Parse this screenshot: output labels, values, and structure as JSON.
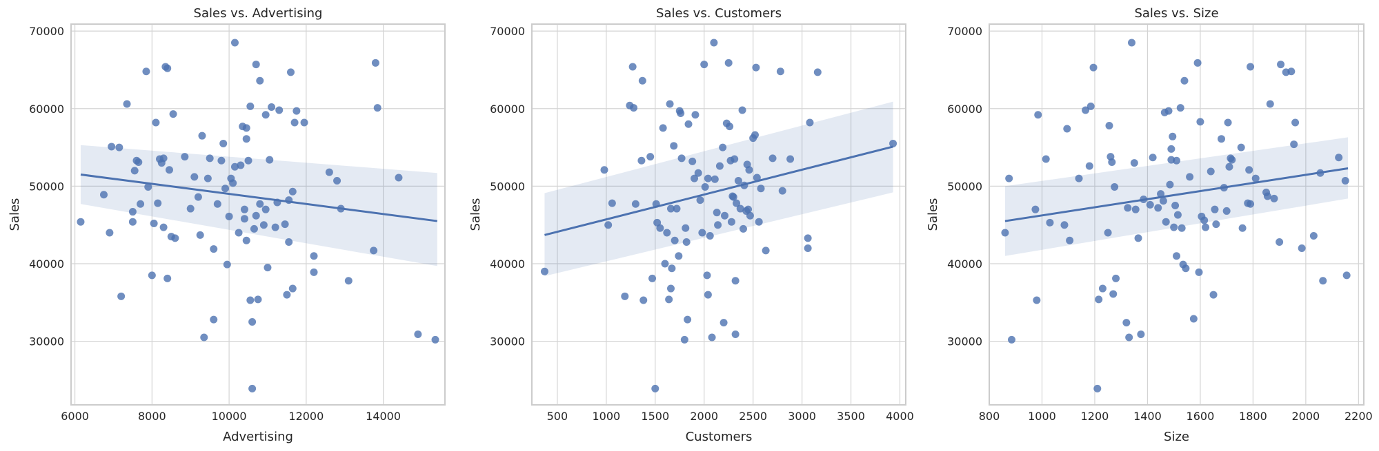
{
  "chart_data": [
    {
      "type": "scatter",
      "title": "Sales vs. Advertising",
      "xlabel": "Advertising",
      "ylabel": "Sales",
      "xlim": [
        5900,
        15600
      ],
      "ylim": [
        21800,
        70900
      ],
      "xticks": [
        6000,
        8000,
        10000,
        12000,
        14000
      ],
      "yticks": [
        30000,
        40000,
        50000,
        60000,
        70000
      ],
      "grid": true,
      "regression": {
        "x": [
          6150,
          15400
        ],
        "y": [
          51500,
          45500
        ],
        "ci_lower": [
          47700,
          39700
        ],
        "ci_upper": [
          55300,
          51700
        ]
      },
      "points": [
        [
          6150,
          45400
        ],
        [
          6750,
          48900
        ],
        [
          6900,
          44000
        ],
        [
          6950,
          55100
        ],
        [
          7150,
          55000
        ],
        [
          7200,
          35800
        ],
        [
          7350,
          60600
        ],
        [
          7500,
          46700
        ],
        [
          7500,
          45400
        ],
        [
          7550,
          52000
        ],
        [
          7600,
          53300
        ],
        [
          7650,
          53100
        ],
        [
          7700,
          47700
        ],
        [
          7850,
          64800
        ],
        [
          7900,
          49900
        ],
        [
          8000,
          38500
        ],
        [
          8050,
          45200
        ],
        [
          8100,
          58200
        ],
        [
          8150,
          47800
        ],
        [
          8200,
          53500
        ],
        [
          8250,
          53000
        ],
        [
          8300,
          53600
        ],
        [
          8300,
          44700
        ],
        [
          8350,
          65400
        ],
        [
          8400,
          65200
        ],
        [
          8400,
          38100
        ],
        [
          8450,
          52100
        ],
        [
          8500,
          43500
        ],
        [
          8550,
          59300
        ],
        [
          8600,
          43300
        ],
        [
          8850,
          53800
        ],
        [
          9000,
          47100
        ],
        [
          9100,
          51200
        ],
        [
          9200,
          48600
        ],
        [
          9250,
          43700
        ],
        [
          9300,
          56500
        ],
        [
          9350,
          30500
        ],
        [
          9450,
          51000
        ],
        [
          9500,
          53600
        ],
        [
          9600,
          32800
        ],
        [
          9600,
          41900
        ],
        [
          9700,
          47700
        ],
        [
          9800,
          53300
        ],
        [
          9850,
          55500
        ],
        [
          9900,
          49700
        ],
        [
          9950,
          39900
        ],
        [
          10000,
          46100
        ],
        [
          10050,
          51000
        ],
        [
          10100,
          50400
        ],
        [
          10150,
          68500
        ],
        [
          10150,
          52500
        ],
        [
          10250,
          44000
        ],
        [
          10300,
          52700
        ],
        [
          10350,
          57700
        ],
        [
          10400,
          47000
        ],
        [
          10400,
          45800
        ],
        [
          10450,
          57500
        ],
        [
          10450,
          56100
        ],
        [
          10450,
          43000
        ],
        [
          10500,
          53300
        ],
        [
          10550,
          60300
        ],
        [
          10550,
          35300
        ],
        [
          10600,
          23900
        ],
        [
          10600,
          32500
        ],
        [
          10650,
          44500
        ],
        [
          10700,
          46200
        ],
        [
          10700,
          65700
        ],
        [
          10750,
          35400
        ],
        [
          10800,
          47700
        ],
        [
          10800,
          63600
        ],
        [
          10900,
          45000
        ],
        [
          10950,
          59200
        ],
        [
          10950,
          47000
        ],
        [
          11000,
          39500
        ],
        [
          11050,
          53400
        ],
        [
          11100,
          60200
        ],
        [
          11200,
          44700
        ],
        [
          11250,
          47900
        ],
        [
          11300,
          59800
        ],
        [
          11450,
          45100
        ],
        [
          11500,
          36000
        ],
        [
          11550,
          48200
        ],
        [
          11550,
          42800
        ],
        [
          11600,
          64700
        ],
        [
          11650,
          49300
        ],
        [
          11650,
          36800
        ],
        [
          11700,
          58200
        ],
        [
          11750,
          59700
        ],
        [
          11950,
          58200
        ],
        [
          12200,
          41000
        ],
        [
          12200,
          38900
        ],
        [
          12600,
          51800
        ],
        [
          12800,
          50700
        ],
        [
          12900,
          47100
        ],
        [
          13100,
          37800
        ],
        [
          13750,
          41700
        ],
        [
          13800,
          65900
        ],
        [
          13850,
          60100
        ],
        [
          14400,
          51100
        ],
        [
          14900,
          30900
        ],
        [
          15350,
          30200
        ]
      ]
    },
    {
      "type": "scatter",
      "title": "Sales vs. Customers",
      "xlabel": "Customers",
      "ylabel": "Sales",
      "xlim": [
        240,
        4060
      ],
      "ylim": [
        21800,
        70900
      ],
      "xticks": [
        500,
        1000,
        1500,
        2000,
        2500,
        3000,
        3500,
        4000
      ],
      "yticks": [
        30000,
        40000,
        50000,
        60000,
        70000
      ],
      "grid": true,
      "regression": {
        "x": [
          370,
          3930
        ],
        "y": [
          43700,
          55100
        ],
        "ci_lower": [
          38400,
          49200
        ],
        "ci_upper": [
          49100,
          60900
        ]
      },
      "points": [
        [
          370,
          39000
        ],
        [
          980,
          52100
        ],
        [
          1020,
          45000
        ],
        [
          1060,
          47800
        ],
        [
          1190,
          35800
        ],
        [
          1240,
          60400
        ],
        [
          1270,
          65400
        ],
        [
          1280,
          60100
        ],
        [
          1300,
          47700
        ],
        [
          1360,
          53300
        ],
        [
          1370,
          63600
        ],
        [
          1380,
          35300
        ],
        [
          1450,
          53800
        ],
        [
          1470,
          38100
        ],
        [
          1500,
          23900
        ],
        [
          1510,
          47700
        ],
        [
          1520,
          45300
        ],
        [
          1550,
          44600
        ],
        [
          1580,
          57500
        ],
        [
          1600,
          40000
        ],
        [
          1620,
          44000
        ],
        [
          1640,
          35400
        ],
        [
          1650,
          60600
        ],
        [
          1660,
          36800
        ],
        [
          1660,
          47100
        ],
        [
          1670,
          39400
        ],
        [
          1690,
          55200
        ],
        [
          1700,
          43000
        ],
        [
          1720,
          47100
        ],
        [
          1740,
          41000
        ],
        [
          1750,
          59700
        ],
        [
          1760,
          59400
        ],
        [
          1770,
          53600
        ],
        [
          1800,
          30200
        ],
        [
          1810,
          44600
        ],
        [
          1820,
          42800
        ],
        [
          1830,
          32800
        ],
        [
          1840,
          58000
        ],
        [
          1880,
          53200
        ],
        [
          1900,
          51000
        ],
        [
          1910,
          59200
        ],
        [
          1940,
          51700
        ],
        [
          1960,
          48200
        ],
        [
          1980,
          44000
        ],
        [
          2000,
          65700
        ],
        [
          2010,
          49900
        ],
        [
          2030,
          38500
        ],
        [
          2040,
          51000
        ],
        [
          2040,
          36000
        ],
        [
          2060,
          43600
        ],
        [
          2080,
          30500
        ],
        [
          2100,
          68500
        ],
        [
          2110,
          50900
        ],
        [
          2130,
          46600
        ],
        [
          2140,
          45000
        ],
        [
          2160,
          52600
        ],
        [
          2190,
          55000
        ],
        [
          2200,
          32400
        ],
        [
          2210,
          46200
        ],
        [
          2230,
          58100
        ],
        [
          2250,
          65900
        ],
        [
          2260,
          57700
        ],
        [
          2270,
          53300
        ],
        [
          2280,
          45400
        ],
        [
          2290,
          48700
        ],
        [
          2300,
          48600
        ],
        [
          2310,
          53500
        ],
        [
          2320,
          37800
        ],
        [
          2320,
          30900
        ],
        [
          2330,
          47800
        ],
        [
          2350,
          50700
        ],
        [
          2370,
          47100
        ],
        [
          2390,
          59800
        ],
        [
          2400,
          44500
        ],
        [
          2410,
          50100
        ],
        [
          2430,
          46800
        ],
        [
          2440,
          52800
        ],
        [
          2450,
          47000
        ],
        [
          2460,
          52100
        ],
        [
          2470,
          46200
        ],
        [
          2500,
          56200
        ],
        [
          2520,
          56600
        ],
        [
          2530,
          65300
        ],
        [
          2540,
          51100
        ],
        [
          2560,
          45400
        ],
        [
          2580,
          49700
        ],
        [
          2630,
          41700
        ],
        [
          2700,
          53600
        ],
        [
          2780,
          64800
        ],
        [
          2800,
          49400
        ],
        [
          2880,
          53500
        ],
        [
          3060,
          43300
        ],
        [
          3060,
          42000
        ],
        [
          3080,
          58200
        ],
        [
          3160,
          64700
        ],
        [
          3930,
          55500
        ]
      ]
    },
    {
      "type": "scatter",
      "title": "Sales vs. Size",
      "xlabel": "Size",
      "ylabel": "Sales",
      "xlim": [
        800,
        2220
      ],
      "ylim": [
        21800,
        70900
      ],
      "xticks": [
        800,
        1000,
        1200,
        1400,
        1600,
        1800,
        2000,
        2200
      ],
      "yticks": [
        30000,
        40000,
        50000,
        60000,
        70000
      ],
      "grid": true,
      "regression": {
        "x": [
          860,
          2160
        ],
        "y": [
          45500,
          52300
        ],
        "ci_lower": [
          41000,
          48400
        ],
        "ci_upper": [
          50000,
          56300
        ]
      },
      "points": [
        [
          860,
          44000
        ],
        [
          875,
          51000
        ],
        [
          885,
          30200
        ],
        [
          975,
          47000
        ],
        [
          980,
          35300
        ],
        [
          985,
          59200
        ],
        [
          1015,
          53500
        ],
        [
          1030,
          45300
        ],
        [
          1085,
          45000
        ],
        [
          1095,
          57400
        ],
        [
          1105,
          43000
        ],
        [
          1140,
          51000
        ],
        [
          1165,
          59800
        ],
        [
          1180,
          52600
        ],
        [
          1185,
          60300
        ],
        [
          1195,
          65300
        ],
        [
          1210,
          23900
        ],
        [
          1215,
          35400
        ],
        [
          1230,
          36800
        ],
        [
          1250,
          44000
        ],
        [
          1255,
          57800
        ],
        [
          1260,
          53800
        ],
        [
          1265,
          53100
        ],
        [
          1270,
          36100
        ],
        [
          1275,
          49900
        ],
        [
          1280,
          38100
        ],
        [
          1320,
          32400
        ],
        [
          1325,
          47200
        ],
        [
          1330,
          30500
        ],
        [
          1340,
          68500
        ],
        [
          1350,
          53000
        ],
        [
          1355,
          47000
        ],
        [
          1365,
          43300
        ],
        [
          1375,
          30900
        ],
        [
          1385,
          48300
        ],
        [
          1410,
          47600
        ],
        [
          1420,
          53700
        ],
        [
          1440,
          47200
        ],
        [
          1450,
          49000
        ],
        [
          1460,
          48100
        ],
        [
          1465,
          59500
        ],
        [
          1470,
          45400
        ],
        [
          1480,
          59700
        ],
        [
          1485,
          50200
        ],
        [
          1490,
          53400
        ],
        [
          1490,
          54800
        ],
        [
          1495,
          56400
        ],
        [
          1500,
          44700
        ],
        [
          1505,
          47500
        ],
        [
          1510,
          53300
        ],
        [
          1510,
          41000
        ],
        [
          1515,
          46300
        ],
        [
          1525,
          60100
        ],
        [
          1530,
          44600
        ],
        [
          1535,
          39900
        ],
        [
          1540,
          63600
        ],
        [
          1545,
          39400
        ],
        [
          1560,
          51200
        ],
        [
          1575,
          32900
        ],
        [
          1590,
          65900
        ],
        [
          1595,
          38900
        ],
        [
          1600,
          58300
        ],
        [
          1605,
          46100
        ],
        [
          1615,
          45600
        ],
        [
          1620,
          44700
        ],
        [
          1640,
          51900
        ],
        [
          1650,
          36000
        ],
        [
          1655,
          47000
        ],
        [
          1660,
          45100
        ],
        [
          1680,
          56100
        ],
        [
          1690,
          49800
        ],
        [
          1700,
          46800
        ],
        [
          1705,
          58200
        ],
        [
          1710,
          52500
        ],
        [
          1715,
          53600
        ],
        [
          1720,
          53400
        ],
        [
          1755,
          55000
        ],
        [
          1760,
          44600
        ],
        [
          1780,
          47800
        ],
        [
          1785,
          52100
        ],
        [
          1790,
          65400
        ],
        [
          1790,
          47700
        ],
        [
          1810,
          51000
        ],
        [
          1850,
          49200
        ],
        [
          1855,
          48700
        ],
        [
          1865,
          60600
        ],
        [
          1880,
          48400
        ],
        [
          1900,
          42800
        ],
        [
          1905,
          65700
        ],
        [
          1925,
          64700
        ],
        [
          1945,
          64800
        ],
        [
          1955,
          55400
        ],
        [
          1960,
          58200
        ],
        [
          1985,
          42000
        ],
        [
          2030,
          43600
        ],
        [
          2055,
          51700
        ],
        [
          2065,
          37800
        ],
        [
          2125,
          53700
        ],
        [
          2150,
          50700
        ],
        [
          2155,
          38500
        ]
      ]
    }
  ]
}
